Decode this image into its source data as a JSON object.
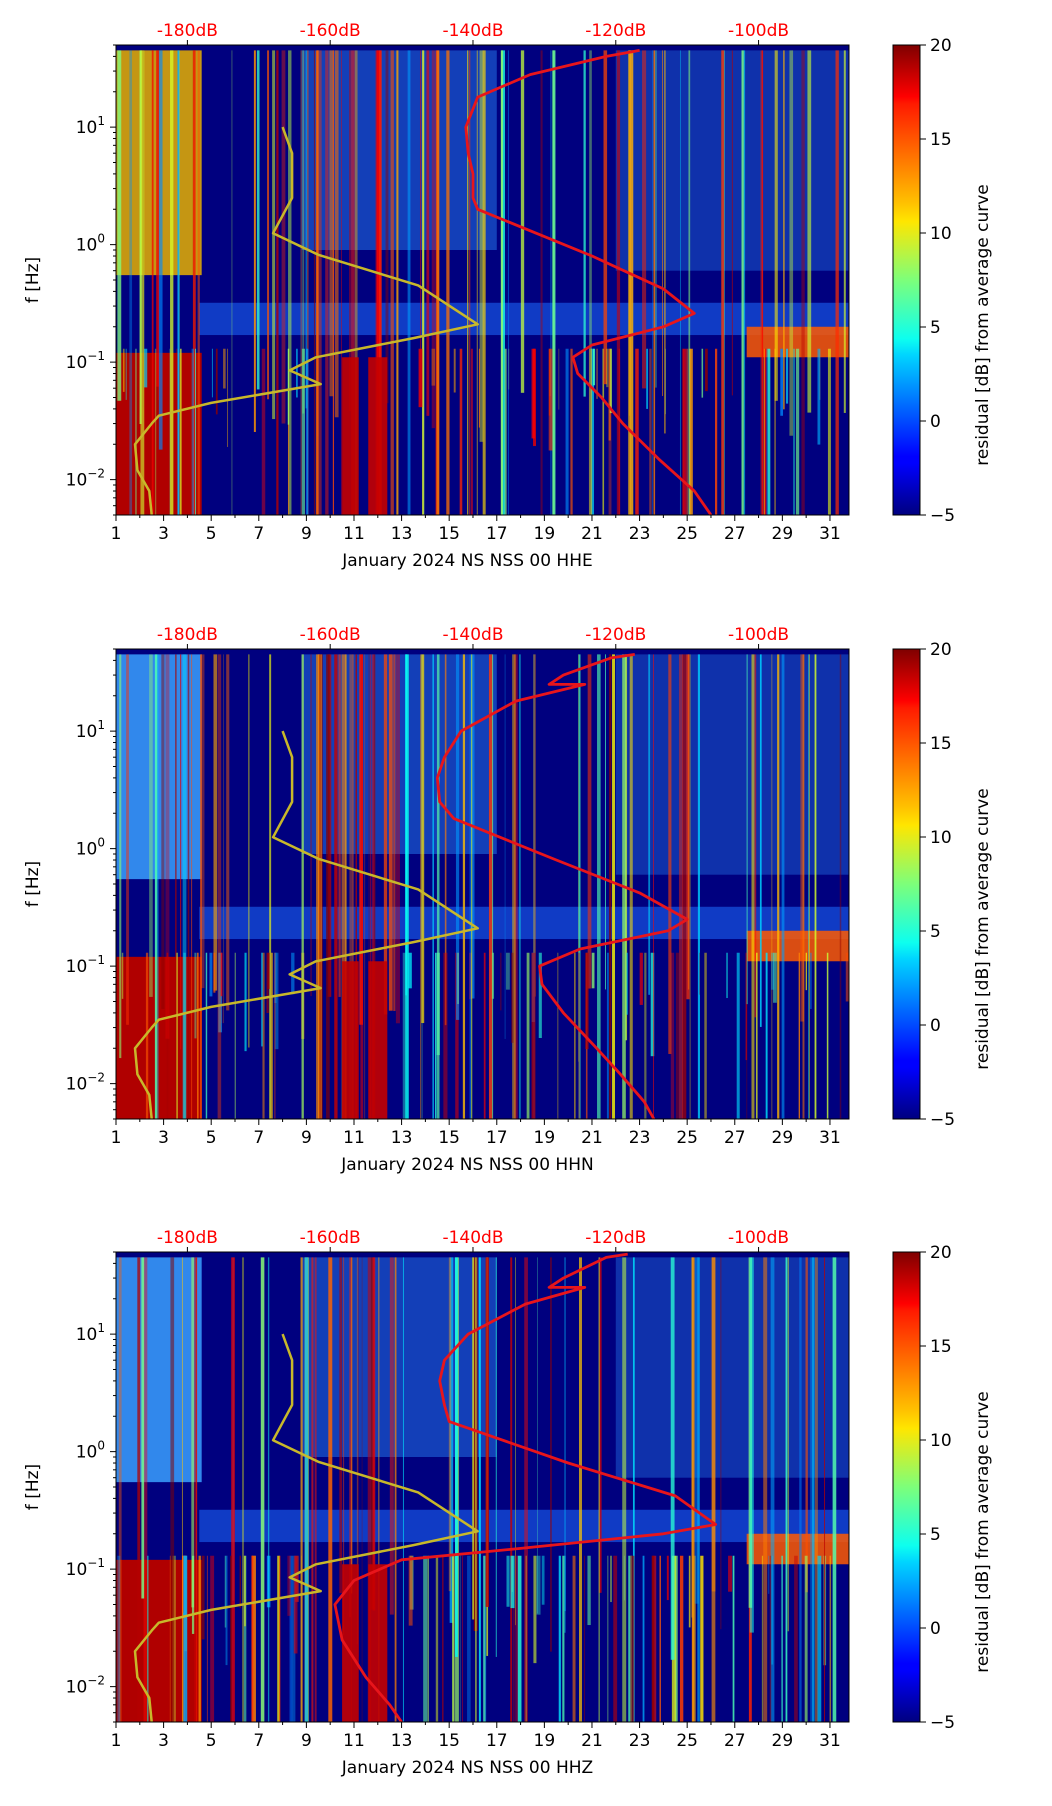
{
  "chart_data": [
    {
      "type": "heatmap",
      "title": "",
      "xlabel": "January 2024 NS NSS 00 HHE",
      "ylabel": "f [Hz]",
      "x_ticks": [
        "1",
        "3",
        "5",
        "7",
        "9",
        "11",
        "13",
        "15",
        "17",
        "19",
        "21",
        "23",
        "25",
        "27",
        "29",
        "31"
      ],
      "x_tick_values": [
        1,
        3,
        5,
        7,
        9,
        11,
        13,
        15,
        17,
        19,
        21,
        23,
        25,
        27,
        29,
        31
      ],
      "xlim": [
        1,
        31.8
      ],
      "y_scale": "log",
      "ylim": [
        0.005,
        50
      ],
      "y_ticks": [
        {
          "base": "10",
          "exp": "1",
          "value": 10
        },
        {
          "base": "10",
          "exp": "0",
          "value": 1
        },
        {
          "base": "10",
          "exp": "−1",
          "value": 0.1
        },
        {
          "base": "10",
          "exp": "−2",
          "value": 0.01
        }
      ],
      "top_axis_labels": [
        "-180dB",
        "-160dB",
        "-140dB",
        "-120dB",
        "-100dB"
      ],
      "top_axis_positions_day": [
        4,
        10,
        16,
        22,
        28
      ],
      "colorbar": {
        "label": "residual [dB] from average curve",
        "min": -5,
        "max": 20,
        "ticks": [
          "20",
          "15",
          "10",
          "5",
          "0",
          "−5"
        ],
        "tick_values": [
          20,
          15,
          10,
          5,
          0,
          -5
        ]
      },
      "colors": {
        "yellow_curve": "#c8b82a",
        "red_curve": "#e8151b",
        "top_label": "#ff0000"
      },
      "series": [
        {
          "name": "yellow reference curve",
          "x": [
            8.0,
            8.4,
            8.4,
            7.6,
            9.5,
            13.7,
            16.2,
            13.5,
            9.4,
            8.3,
            9.6,
            5.0,
            2.8,
            2.5,
            1.8,
            1.9,
            2.4,
            2.5
          ],
          "y": [
            10,
            6,
            2.5,
            1.25,
            0.82,
            0.45,
            0.21,
            0.16,
            0.11,
            0.085,
            0.065,
            0.045,
            0.035,
            0.03,
            0.02,
            0.012,
            0.008,
            0.005
          ]
        },
        {
          "name": "red average curve",
          "x": [
            23.0,
            21.6,
            18.4,
            16.2,
            15.7,
            15.8,
            16.0,
            16.0,
            16.2,
            21.0,
            24.0,
            25.3,
            24.0,
            21.0,
            20.2,
            20.4,
            21.4,
            22.3,
            23.8,
            25.3,
            26.0
          ],
          "y": [
            45,
            40,
            28,
            18,
            10,
            6,
            4,
            2.5,
            2.0,
            0.8,
            0.42,
            0.26,
            0.2,
            0.14,
            0.11,
            0.08,
            0.05,
            0.03,
            0.015,
            0.008,
            0.005
          ]
        }
      ]
    },
    {
      "type": "heatmap",
      "title": "",
      "xlabel": "January 2024 NS NSS 00 HHN",
      "ylabel": "f [Hz]",
      "x_ticks": [
        "1",
        "3",
        "5",
        "7",
        "9",
        "11",
        "13",
        "15",
        "17",
        "19",
        "21",
        "23",
        "25",
        "27",
        "29",
        "31"
      ],
      "x_tick_values": [
        1,
        3,
        5,
        7,
        9,
        11,
        13,
        15,
        17,
        19,
        21,
        23,
        25,
        27,
        29,
        31
      ],
      "xlim": [
        1,
        31.8
      ],
      "y_scale": "log",
      "ylim": [
        0.005,
        50
      ],
      "y_ticks": [
        {
          "base": "10",
          "exp": "1",
          "value": 10
        },
        {
          "base": "10",
          "exp": "0",
          "value": 1
        },
        {
          "base": "10",
          "exp": "−1",
          "value": 0.1
        },
        {
          "base": "10",
          "exp": "−2",
          "value": 0.01
        }
      ],
      "top_axis_labels": [
        "-180dB",
        "-160dB",
        "-140dB",
        "-120dB",
        "-100dB"
      ],
      "top_axis_positions_day": [
        4,
        10,
        16,
        22,
        28
      ],
      "colorbar": {
        "label": "residual [dB] from average curve",
        "min": -5,
        "max": 20,
        "ticks": [
          "20",
          "15",
          "10",
          "5",
          "0",
          "−5"
        ],
        "tick_values": [
          20,
          15,
          10,
          5,
          0,
          -5
        ]
      },
      "colors": {
        "yellow_curve": "#c8b82a",
        "red_curve": "#e8151b",
        "top_label": "#ff0000"
      },
      "series": [
        {
          "name": "yellow reference curve",
          "x": [
            8.0,
            8.4,
            8.4,
            7.6,
            9.5,
            13.7,
            16.2,
            13.5,
            9.4,
            8.3,
            9.6,
            5.0,
            2.8,
            2.5,
            1.8,
            1.9,
            2.4,
            2.5
          ],
          "y": [
            10,
            6,
            2.5,
            1.25,
            0.82,
            0.45,
            0.21,
            0.16,
            0.11,
            0.085,
            0.065,
            0.045,
            0.035,
            0.03,
            0.02,
            0.012,
            0.008,
            0.005
          ]
        },
        {
          "name": "red average curve",
          "x": [
            22.8,
            21.8,
            19.8,
            19.2,
            20.7,
            17.8,
            15.5,
            14.8,
            14.5,
            14.6,
            15.2,
            19.5,
            23.0,
            25.0,
            24.2,
            20.5,
            18.8,
            18.9,
            19.8,
            21.2,
            22.2,
            23.2,
            23.6
          ],
          "y": [
            45,
            42,
            30,
            25,
            25,
            18,
            10,
            6,
            4,
            2.5,
            1.8,
            0.8,
            0.42,
            0.25,
            0.2,
            0.14,
            0.1,
            0.07,
            0.04,
            0.02,
            0.012,
            0.007,
            0.005
          ]
        }
      ]
    },
    {
      "type": "heatmap",
      "title": "",
      "xlabel": "January 2024 NS NSS 00 HHZ",
      "ylabel": "f [Hz]",
      "x_ticks": [
        "1",
        "3",
        "5",
        "7",
        "9",
        "11",
        "13",
        "15",
        "17",
        "19",
        "21",
        "23",
        "25",
        "27",
        "29",
        "31"
      ],
      "x_tick_values": [
        1,
        3,
        5,
        7,
        9,
        11,
        13,
        15,
        17,
        19,
        21,
        23,
        25,
        27,
        29,
        31
      ],
      "xlim": [
        1,
        31.8
      ],
      "y_scale": "log",
      "ylim": [
        0.005,
        50
      ],
      "y_ticks": [
        {
          "base": "10",
          "exp": "1",
          "value": 10
        },
        {
          "base": "10",
          "exp": "0",
          "value": 1
        },
        {
          "base": "10",
          "exp": "−1",
          "value": 0.1
        },
        {
          "base": "10",
          "exp": "−2",
          "value": 0.01
        }
      ],
      "top_axis_labels": [
        "-180dB",
        "-160dB",
        "-140dB",
        "-120dB",
        "-100dB"
      ],
      "top_axis_positions_day": [
        4,
        10,
        16,
        22,
        28
      ],
      "colorbar": {
        "label": "residual [dB] from average curve",
        "min": -5,
        "max": 20,
        "ticks": [
          "20",
          "15",
          "10",
          "5",
          "0",
          "−5"
        ],
        "tick_values": [
          20,
          15,
          10,
          5,
          0,
          -5
        ]
      },
      "colors": {
        "yellow_curve": "#c8b82a",
        "red_curve": "#e8151b",
        "top_label": "#ff0000"
      },
      "series": [
        {
          "name": "yellow reference curve",
          "x": [
            8.0,
            8.4,
            8.4,
            7.6,
            9.5,
            13.7,
            16.2,
            13.5,
            9.4,
            8.3,
            9.6,
            5.0,
            2.8,
            2.5,
            1.8,
            1.9,
            2.4,
            2.5
          ],
          "y": [
            10,
            6,
            2.5,
            1.25,
            0.82,
            0.45,
            0.21,
            0.16,
            0.11,
            0.085,
            0.065,
            0.045,
            0.035,
            0.03,
            0.02,
            0.012,
            0.008,
            0.005
          ]
        },
        {
          "name": "red average curve",
          "x": [
            22.5,
            21.6,
            19.8,
            19.2,
            20.7,
            18.2,
            15.8,
            14.8,
            14.6,
            14.8,
            15.0,
            20.0,
            24.5,
            26.2,
            24.0,
            18.0,
            13.0,
            11.0,
            10.2,
            10.5,
            11.5,
            12.5,
            13.0
          ],
          "y": [
            48,
            45,
            30,
            25,
            25,
            18,
            10,
            6,
            4,
            2.5,
            1.8,
            0.8,
            0.42,
            0.24,
            0.2,
            0.15,
            0.12,
            0.08,
            0.05,
            0.025,
            0.012,
            0.007,
            0.005
          ]
        }
      ]
    }
  ]
}
